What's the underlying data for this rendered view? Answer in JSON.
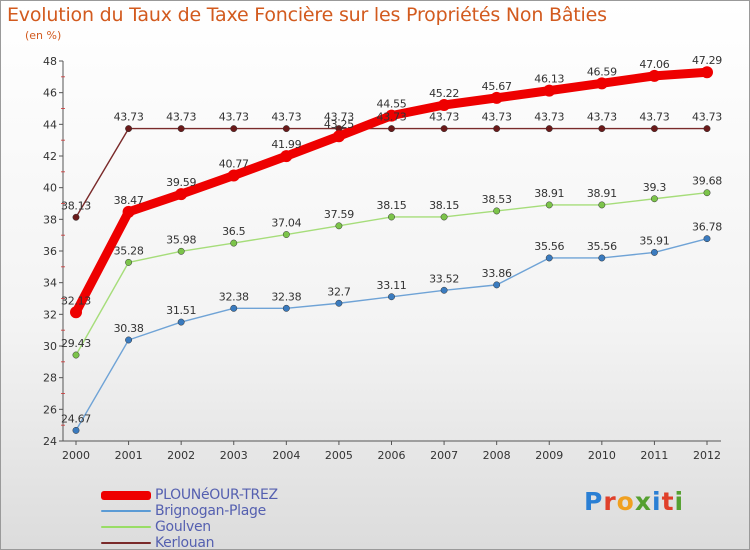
{
  "title": "Evolution du Taux de Taxe Foncière sur les Propriétés Non Bâties",
  "subtitle": "(en %)",
  "logo": {
    "text": "Proxiti",
    "letter_colors": [
      "#2a7fd4",
      "#e0402a",
      "#f0a020",
      "#55a030",
      "#2a7fd4",
      "#e0402a",
      "#55a030"
    ]
  },
  "chart_data": {
    "type": "line",
    "title": "Evolution du Taux de Taxe Foncière sur les Propriétés Non Bâties",
    "ylabel": "(en %)",
    "xlabel": "",
    "x": [
      "2000",
      "2001",
      "2002",
      "2003",
      "2004",
      "2005",
      "2006",
      "2007",
      "2008",
      "2009",
      "2010",
      "2011",
      "2012"
    ],
    "ylim": [
      24,
      48
    ],
    "yticks": [
      24,
      26,
      28,
      30,
      32,
      34,
      36,
      38,
      40,
      42,
      44,
      46,
      48
    ],
    "grid": false,
    "legend_position": "bottom-left",
    "series": [
      {
        "name": "PLOUNéOUR-TREZ",
        "color": "#ee0000",
        "values": [
          32.13,
          38.47,
          39.59,
          40.77,
          41.99,
          43.25,
          44.55,
          45.22,
          45.67,
          46.13,
          46.59,
          47.06,
          47.29
        ],
        "labels": [
          "32.13",
          "38.47",
          "39.59",
          "40.77",
          "41.99",
          "43.25",
          "44.55",
          "45.22",
          "45.67",
          "46.13",
          "46.59",
          "47.06",
          "47.29"
        ]
      },
      {
        "name": "Brignogan-Plage",
        "color": "#5b9bd5",
        "values": [
          24.67,
          30.38,
          31.51,
          32.38,
          32.38,
          32.7,
          33.11,
          33.52,
          33.86,
          35.56,
          35.56,
          35.91,
          36.78
        ],
        "labels": [
          "24.67",
          "30.38",
          "31.51",
          "32.38",
          "32.38",
          "32.7",
          "33.11",
          "33.52",
          "33.86",
          "35.56",
          "35.56",
          "35.91",
          "36.78"
        ]
      },
      {
        "name": "Goulven",
        "color": "#99dd66",
        "values": [
          29.43,
          35.28,
          35.98,
          36.5,
          37.04,
          37.59,
          38.15,
          38.15,
          38.53,
          38.91,
          38.91,
          39.3,
          39.68
        ],
        "labels": [
          "29.43",
          "35.28",
          "35.98",
          "36.5",
          "37.04",
          "37.59",
          "38.15",
          "38.15",
          "38.53",
          "38.91",
          "38.91",
          "39.3",
          "39.68"
        ]
      },
      {
        "name": "Kerlouan",
        "color": "#7a2a2a",
        "values": [
          38.13,
          43.73,
          43.73,
          43.73,
          43.73,
          43.73,
          43.73,
          43.73,
          43.73,
          43.73,
          43.73,
          43.73,
          43.73
        ],
        "labels": [
          "38.13",
          "43.73",
          "43.73",
          "43.73",
          "43.73",
          "43.73",
          "43.73",
          "43.73",
          "43.73",
          "43.73",
          "43.73",
          "43.73",
          "43.73"
        ]
      }
    ]
  }
}
